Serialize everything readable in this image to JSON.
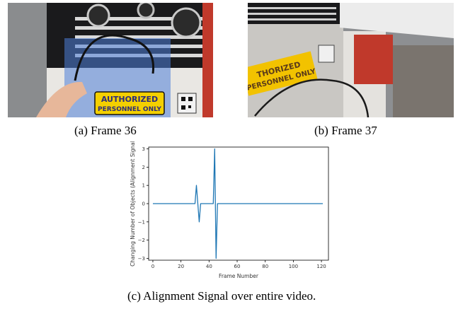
{
  "figure": {
    "captions": {
      "a": "(a) Frame 36",
      "b": "(b) Frame 37",
      "c": "(c) Alignment Signal over entire video."
    },
    "photo_a": {
      "sign_line1": "AUTHORIZED",
      "sign_line2": "PERSONNEL ONLY"
    },
    "photo_b": {
      "sign_line1": "THORIZED",
      "sign_line2": "PERSONNEL ONLY"
    }
  },
  "chart_data": {
    "type": "line",
    "xlabel": "Frame Number",
    "ylabel": "Changing Number of Objects (Alignment Signal",
    "xlim": [
      -3,
      125
    ],
    "ylim": [
      -3.1,
      3.1
    ],
    "xticks": [
      0,
      20,
      40,
      60,
      80,
      100,
      120
    ],
    "yticks": [
      3,
      2,
      1,
      0,
      -1,
      -2,
      -3
    ],
    "series_color": "#1f77b4",
    "x": [
      0,
      30,
      31,
      32,
      33,
      34,
      35,
      36,
      43,
      44,
      45,
      46,
      47,
      121
    ],
    "y": [
      0,
      0,
      1,
      0,
      -1,
      0,
      0,
      0,
      0,
      3,
      -3,
      0,
      0,
      0
    ]
  }
}
